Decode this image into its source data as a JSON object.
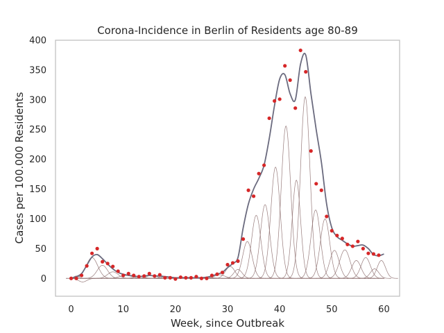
{
  "chart_data": {
    "type": "scatter",
    "title": "Corona-Incidence in Berlin of Residents age 80-89",
    "xlabel": "Week, since Outbreak",
    "ylabel": "Cases per 100.000 Residents",
    "xlim": [
      -3,
      63
    ],
    "ylim": [
      -30,
      400
    ],
    "xticks": [
      0,
      10,
      20,
      30,
      40,
      50,
      60
    ],
    "yticks": [
      0,
      50,
      100,
      150,
      200,
      250,
      300,
      350,
      400
    ],
    "grid": false,
    "legend": "none",
    "colors": {
      "points": "#d62728",
      "fit": "#6a6a7e",
      "components": "#8c6d6d",
      "frame": "#bfbfbf"
    },
    "series": [
      {
        "kind": "points",
        "x": [
          0,
          1,
          2,
          3,
          4,
          5,
          6,
          7,
          8,
          9,
          10,
          11,
          12,
          13,
          14,
          15,
          16,
          17,
          18,
          19,
          20,
          21,
          22,
          23,
          24,
          25,
          26,
          27,
          28,
          29,
          30,
          31,
          32,
          33,
          34,
          35,
          36,
          37,
          38,
          39,
          40,
          41,
          42,
          43,
          44,
          45,
          46,
          47,
          48,
          49,
          50,
          51,
          52,
          53,
          54,
          55,
          56,
          57,
          58,
          59
        ],
        "y": [
          0,
          0,
          5,
          21,
          42,
          50,
          28,
          25,
          20,
          12,
          5,
          8,
          5,
          3,
          4,
          8,
          4,
          6,
          1,
          1,
          -1,
          2,
          1,
          1,
          3,
          0,
          0,
          5,
          7,
          10,
          23,
          26,
          29,
          66,
          148,
          138,
          176,
          190,
          269,
          298,
          301,
          357,
          333,
          286,
          383,
          347,
          214,
          159,
          148,
          104,
          80,
          72,
          67,
          57,
          54,
          62,
          50,
          42,
          41,
          39
        ]
      }
    ],
    "fit": {
      "kind": "line",
      "x": [
        0,
        1,
        2,
        3,
        4,
        5,
        6,
        7,
        8,
        9,
        10,
        11,
        12,
        13,
        14,
        15,
        16,
        17,
        18,
        19,
        20,
        21,
        22,
        23,
        24,
        25,
        26,
        27,
        28,
        29,
        30,
        31,
        32,
        33,
        34,
        35,
        36,
        37,
        38,
        39,
        40,
        41,
        42,
        43,
        44,
        45,
        46,
        47,
        48,
        49,
        50,
        51,
        52,
        53,
        54,
        55,
        56,
        57,
        58,
        59,
        60
      ],
      "y": [
        0,
        3,
        8,
        22,
        36,
        40,
        33,
        24,
        16,
        10,
        7,
        5,
        4,
        3,
        4,
        5,
        4,
        4,
        3,
        2,
        1,
        1,
        1,
        1,
        1,
        1,
        2,
        4,
        7,
        10,
        18,
        25,
        35,
        85,
        125,
        150,
        168,
        190,
        235,
        290,
        335,
        342,
        310,
        300,
        360,
        375,
        310,
        250,
        195,
        125,
        85,
        70,
        64,
        58,
        54,
        55,
        56,
        50,
        40,
        38,
        41
      ]
    },
    "components": [
      {
        "mu": 1.0,
        "amp": 4,
        "sigma": 0.5
      },
      {
        "mu": 2.2,
        "amp": -6,
        "sigma": 0.8
      },
      {
        "mu": 4.0,
        "amp": 35,
        "sigma": 1.1
      },
      {
        "mu": 6.0,
        "amp": 22,
        "sigma": 1.0
      },
      {
        "mu": 8.0,
        "amp": 11,
        "sigma": 1.0
      },
      {
        "mu": 10.5,
        "amp": 5,
        "sigma": 1.2
      },
      {
        "mu": 13.0,
        "amp": 3,
        "sigma": 1.0
      },
      {
        "mu": 15.5,
        "amp": 5,
        "sigma": 1.0
      },
      {
        "mu": 18.5,
        "amp": 3,
        "sigma": 1.2
      },
      {
        "mu": 22.0,
        "amp": 2,
        "sigma": 1.5
      },
      {
        "mu": 26.0,
        "amp": 2,
        "sigma": 1.2
      },
      {
        "mu": 28.5,
        "amp": 6,
        "sigma": 1.0
      },
      {
        "mu": 30.5,
        "amp": 20,
        "sigma": 0.9
      },
      {
        "mu": 32.0,
        "amp": 15,
        "sigma": 0.8
      },
      {
        "mu": 33.8,
        "amp": 62,
        "sigma": 0.9
      },
      {
        "mu": 35.5,
        "amp": 106,
        "sigma": 0.9
      },
      {
        "mu": 37.2,
        "amp": 124,
        "sigma": 0.9
      },
      {
        "mu": 39.2,
        "amp": 187,
        "sigma": 0.9
      },
      {
        "mu": 41.2,
        "amp": 256,
        "sigma": 0.9
      },
      {
        "mu": 43.2,
        "amp": 165,
        "sigma": 0.8
      },
      {
        "mu": 44.9,
        "amp": 305,
        "sigma": 0.9
      },
      {
        "mu": 46.9,
        "amp": 115,
        "sigma": 0.9
      },
      {
        "mu": 48.7,
        "amp": 100,
        "sigma": 0.9
      },
      {
        "mu": 50.5,
        "amp": 47,
        "sigma": 0.9
      },
      {
        "mu": 52.5,
        "amp": 48,
        "sigma": 1.0
      },
      {
        "mu": 54.7,
        "amp": 30,
        "sigma": 0.9
      },
      {
        "mu": 56.5,
        "amp": 35,
        "sigma": 0.9
      },
      {
        "mu": 58.2,
        "amp": 16,
        "sigma": 0.8
      },
      {
        "mu": 59.5,
        "amp": 30,
        "sigma": 0.8
      }
    ]
  }
}
